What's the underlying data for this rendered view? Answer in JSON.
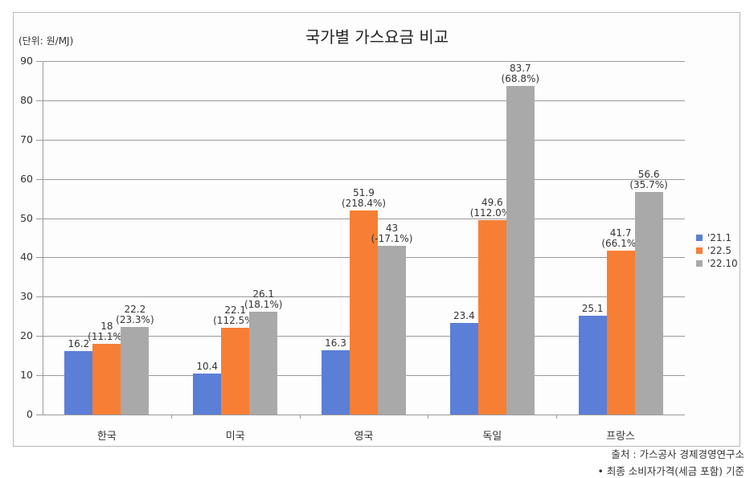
{
  "chart_data": {
    "type": "bar",
    "title": "국가별 가스요금 비교",
    "unit_label": "(단위: 원/MJ)",
    "xlabel": "",
    "ylabel": "원/MJ",
    "ylim": [
      0,
      90
    ],
    "yticks": [
      "0",
      "10",
      "20",
      "30",
      "40",
      "50",
      "60",
      "70",
      "80",
      "90"
    ],
    "grid": true,
    "legend_position": "right",
    "categories": [
      "한국",
      "미국",
      "영국",
      "독일",
      "프랑스"
    ],
    "series": [
      {
        "name": "'21.1",
        "color": "#5b7fd6",
        "values": [
          16.2,
          10.4,
          16.3,
          23.4,
          25.1
        ],
        "labels": [
          [
            "16.2",
            ""
          ],
          [
            "10.4",
            ""
          ],
          [
            "16.3",
            ""
          ],
          [
            "23.4",
            ""
          ],
          [
            "25.1",
            ""
          ]
        ]
      },
      {
        "name": "'22.5",
        "color": "#f77f35",
        "values": [
          18,
          22.1,
          51.9,
          49.6,
          41.7
        ],
        "labels": [
          [
            "18",
            "(11.1%)"
          ],
          [
            "22.1",
            "(112.5%)"
          ],
          [
            "51.9",
            "(218.4%)"
          ],
          [
            "49.6",
            "(112.0%)"
          ],
          [
            "41.7",
            "(66.1%)"
          ]
        ]
      },
      {
        "name": "'22.10",
        "color": "#a9a9a9",
        "values": [
          22.2,
          26.1,
          43,
          83.7,
          56.6
        ],
        "labels": [
          [
            "22.2",
            "(23.3%)"
          ],
          [
            "26.1",
            "(18.1%)"
          ],
          [
            "43",
            "(-17.1%)"
          ],
          [
            "83.7",
            "(68.8%)"
          ],
          [
            "56.6",
            "(35.7%)"
          ]
        ]
      }
    ]
  },
  "footer": {
    "source": "출처 : 가스공사 경제경영연구소",
    "note": "• 최종 소비자가격(세금 포함) 기준"
  }
}
